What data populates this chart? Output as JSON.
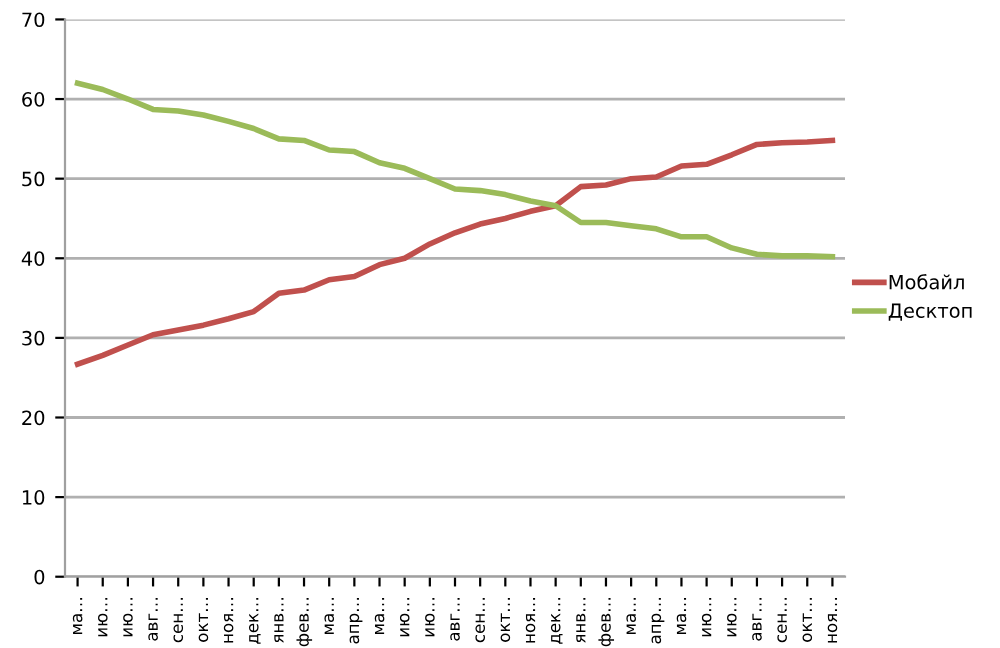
{
  "chart_data": {
    "type": "line",
    "categories": [
      "ма…",
      "ию…",
      "ию…",
      "авг…",
      "сен…",
      "окт…",
      "ноя…",
      "дек…",
      "янв…",
      "фев…",
      "ма…",
      "апр…",
      "ма…",
      "ию…",
      "ию…",
      "авг…",
      "сен…",
      "окт…",
      "ноя…",
      "дек…",
      "янв…",
      "фев…",
      "ма…",
      "апр…",
      "ма…",
      "ию…",
      "ию…",
      "авг…",
      "сен…",
      "окт…",
      "ноя…"
    ],
    "series": [
      {
        "name": "Мобайл",
        "color": "#c0504d",
        "values": [
          26.7,
          27.8,
          29.1,
          30.4,
          31.0,
          31.6,
          32.4,
          33.3,
          35.6,
          36.0,
          37.3,
          37.7,
          39.2,
          40.0,
          41.8,
          43.2,
          44.3,
          45.0,
          45.9,
          46.6,
          49.0,
          49.2,
          50.0,
          50.2,
          51.6,
          51.8,
          53.0,
          54.3,
          54.5,
          54.6,
          54.8
        ]
      },
      {
        "name": "Десктоп",
        "color": "#9bbb59",
        "values": [
          62.0,
          61.2,
          60.0,
          58.7,
          58.5,
          58.0,
          57.2,
          56.3,
          55.0,
          54.8,
          53.6,
          53.4,
          52.0,
          51.3,
          50.0,
          48.7,
          48.5,
          48.0,
          47.2,
          46.6,
          44.5,
          44.5,
          44.1,
          43.7,
          42.7,
          42.7,
          41.3,
          40.5,
          40.3,
          40.3,
          40.2
        ]
      }
    ],
    "ylim": [
      0,
      70
    ],
    "yticks": [
      0,
      10,
      20,
      30,
      40,
      50,
      60,
      70
    ],
    "grid": "y",
    "legend": "right",
    "marker": "none",
    "line_style": "solid"
  }
}
